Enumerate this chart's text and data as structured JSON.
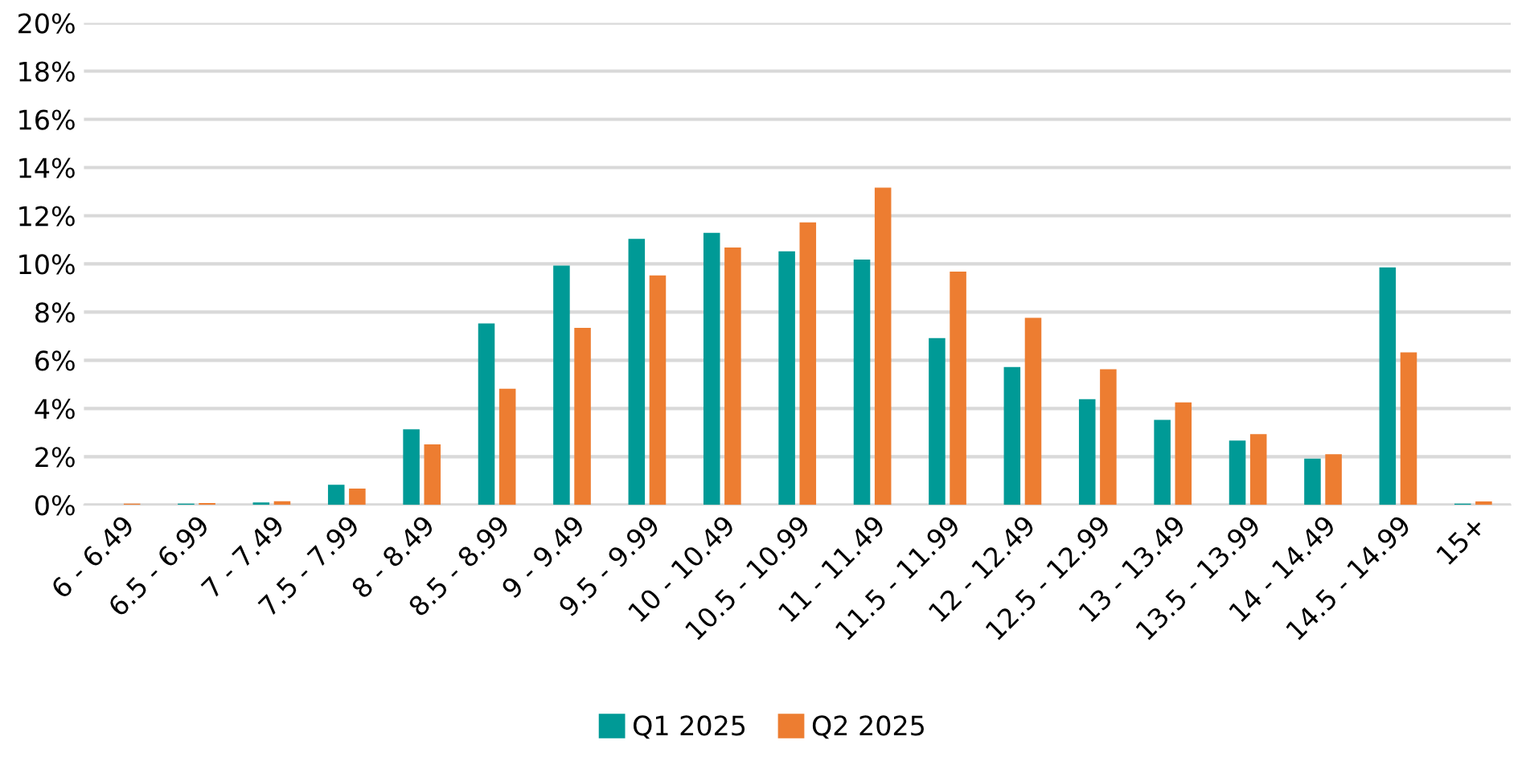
{
  "chart_data": {
    "type": "bar",
    "categories": [
      "6 - 6.49",
      "6.5 - 6.99",
      "7 - 7.49",
      "7.5 - 7.99",
      "8 - 8.49",
      "8.5 - 8.99",
      "9 - 9.49",
      "9.5 - 9.99",
      "10 - 10.49",
      "10.5 - 10.99",
      "11 - 11.49",
      "11.5 - 11.99",
      "12 - 12.49",
      "12.5 - 12.99",
      "13 - 13.49",
      "13.5 - 13.99",
      "14 - 14.49",
      "14.5 - 14.99",
      "15+"
    ],
    "series": [
      {
        "name": "Q1 2025",
        "color": "#009a96",
        "values": [
          0,
          0.05,
          0.1,
          0.84,
          3.14,
          7.53,
          9.93,
          11.04,
          11.29,
          10.52,
          10.18,
          6.92,
          5.72,
          4.39,
          3.53,
          2.67,
          1.92,
          9.86,
          0.05
        ]
      },
      {
        "name": "Q2 2025",
        "color": "#ed7d31",
        "values": [
          0.05,
          0.08,
          0.15,
          0.68,
          2.51,
          4.82,
          7.35,
          9.52,
          10.68,
          11.72,
          13.17,
          9.68,
          7.76,
          5.63,
          4.25,
          2.94,
          2.1,
          6.33,
          0.14
        ]
      }
    ],
    "ylim": [
      0,
      20
    ],
    "yticks": [
      {
        "value": 0,
        "label": "0%"
      },
      {
        "value": 2,
        "label": "2%"
      },
      {
        "value": 4,
        "label": "4%"
      },
      {
        "value": 6,
        "label": "6%"
      },
      {
        "value": 8,
        "label": "8%"
      },
      {
        "value": 10,
        "label": "10%"
      },
      {
        "value": 12,
        "label": "12%"
      },
      {
        "value": 14,
        "label": "14%"
      },
      {
        "value": 16,
        "label": "16%"
      },
      {
        "value": 18,
        "label": "18%"
      },
      {
        "value": 20,
        "label": "20%"
      }
    ],
    "grid": "y",
    "legend": "bottom"
  }
}
